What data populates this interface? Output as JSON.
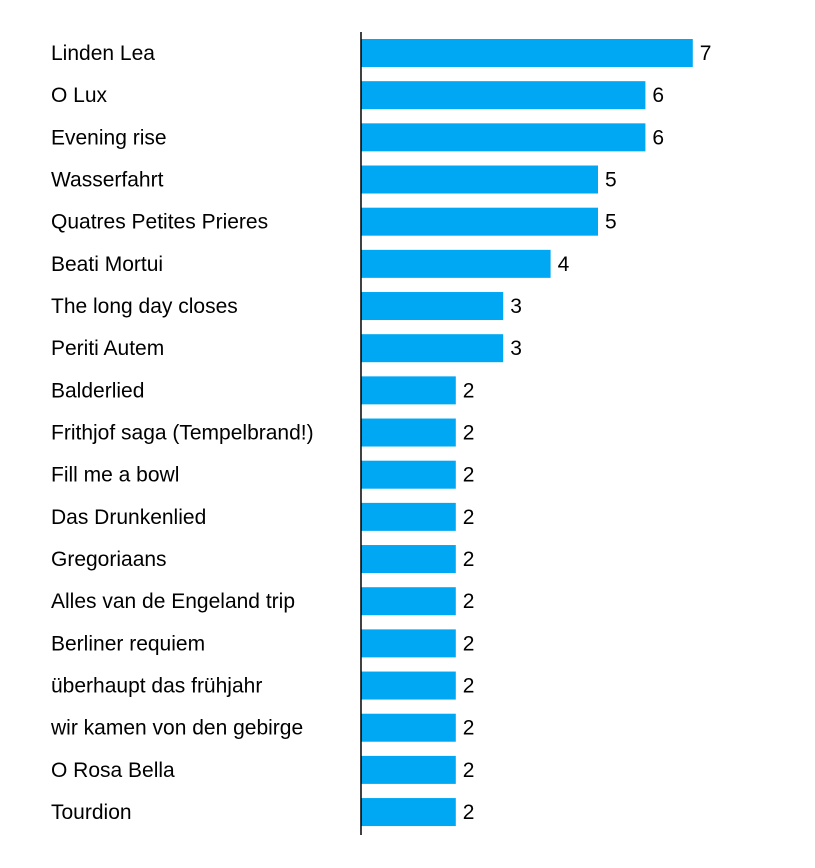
{
  "chart_data": {
    "type": "bar",
    "orientation": "horizontal",
    "title": "",
    "xlabel": "",
    "ylabel": "",
    "xlim": [
      0,
      7
    ],
    "grid": false,
    "bar_color": "#00A8F3",
    "categories": [
      "Linden Lea",
      "O Lux",
      "Evening rise",
      "Wasserfahrt",
      "Quatres Petites Prieres",
      "Beati Mortui",
      "The long day closes",
      "Periti Autem",
      "Balderlied",
      "Frithjof saga (Tempelbrand!)",
      "Fill me a bowl",
      "Das Drunkenlied",
      "Gregoriaans",
      "Alles van de Engeland trip",
      "Berliner requiem",
      "überhaupt das frühjahr",
      "wir kamen von den gebirge",
      "O Rosa Bella",
      "Tourdion"
    ],
    "values": [
      7,
      6,
      6,
      5,
      5,
      4,
      3,
      3,
      2,
      2,
      2,
      2,
      2,
      2,
      2,
      2,
      2,
      2,
      2
    ]
  }
}
